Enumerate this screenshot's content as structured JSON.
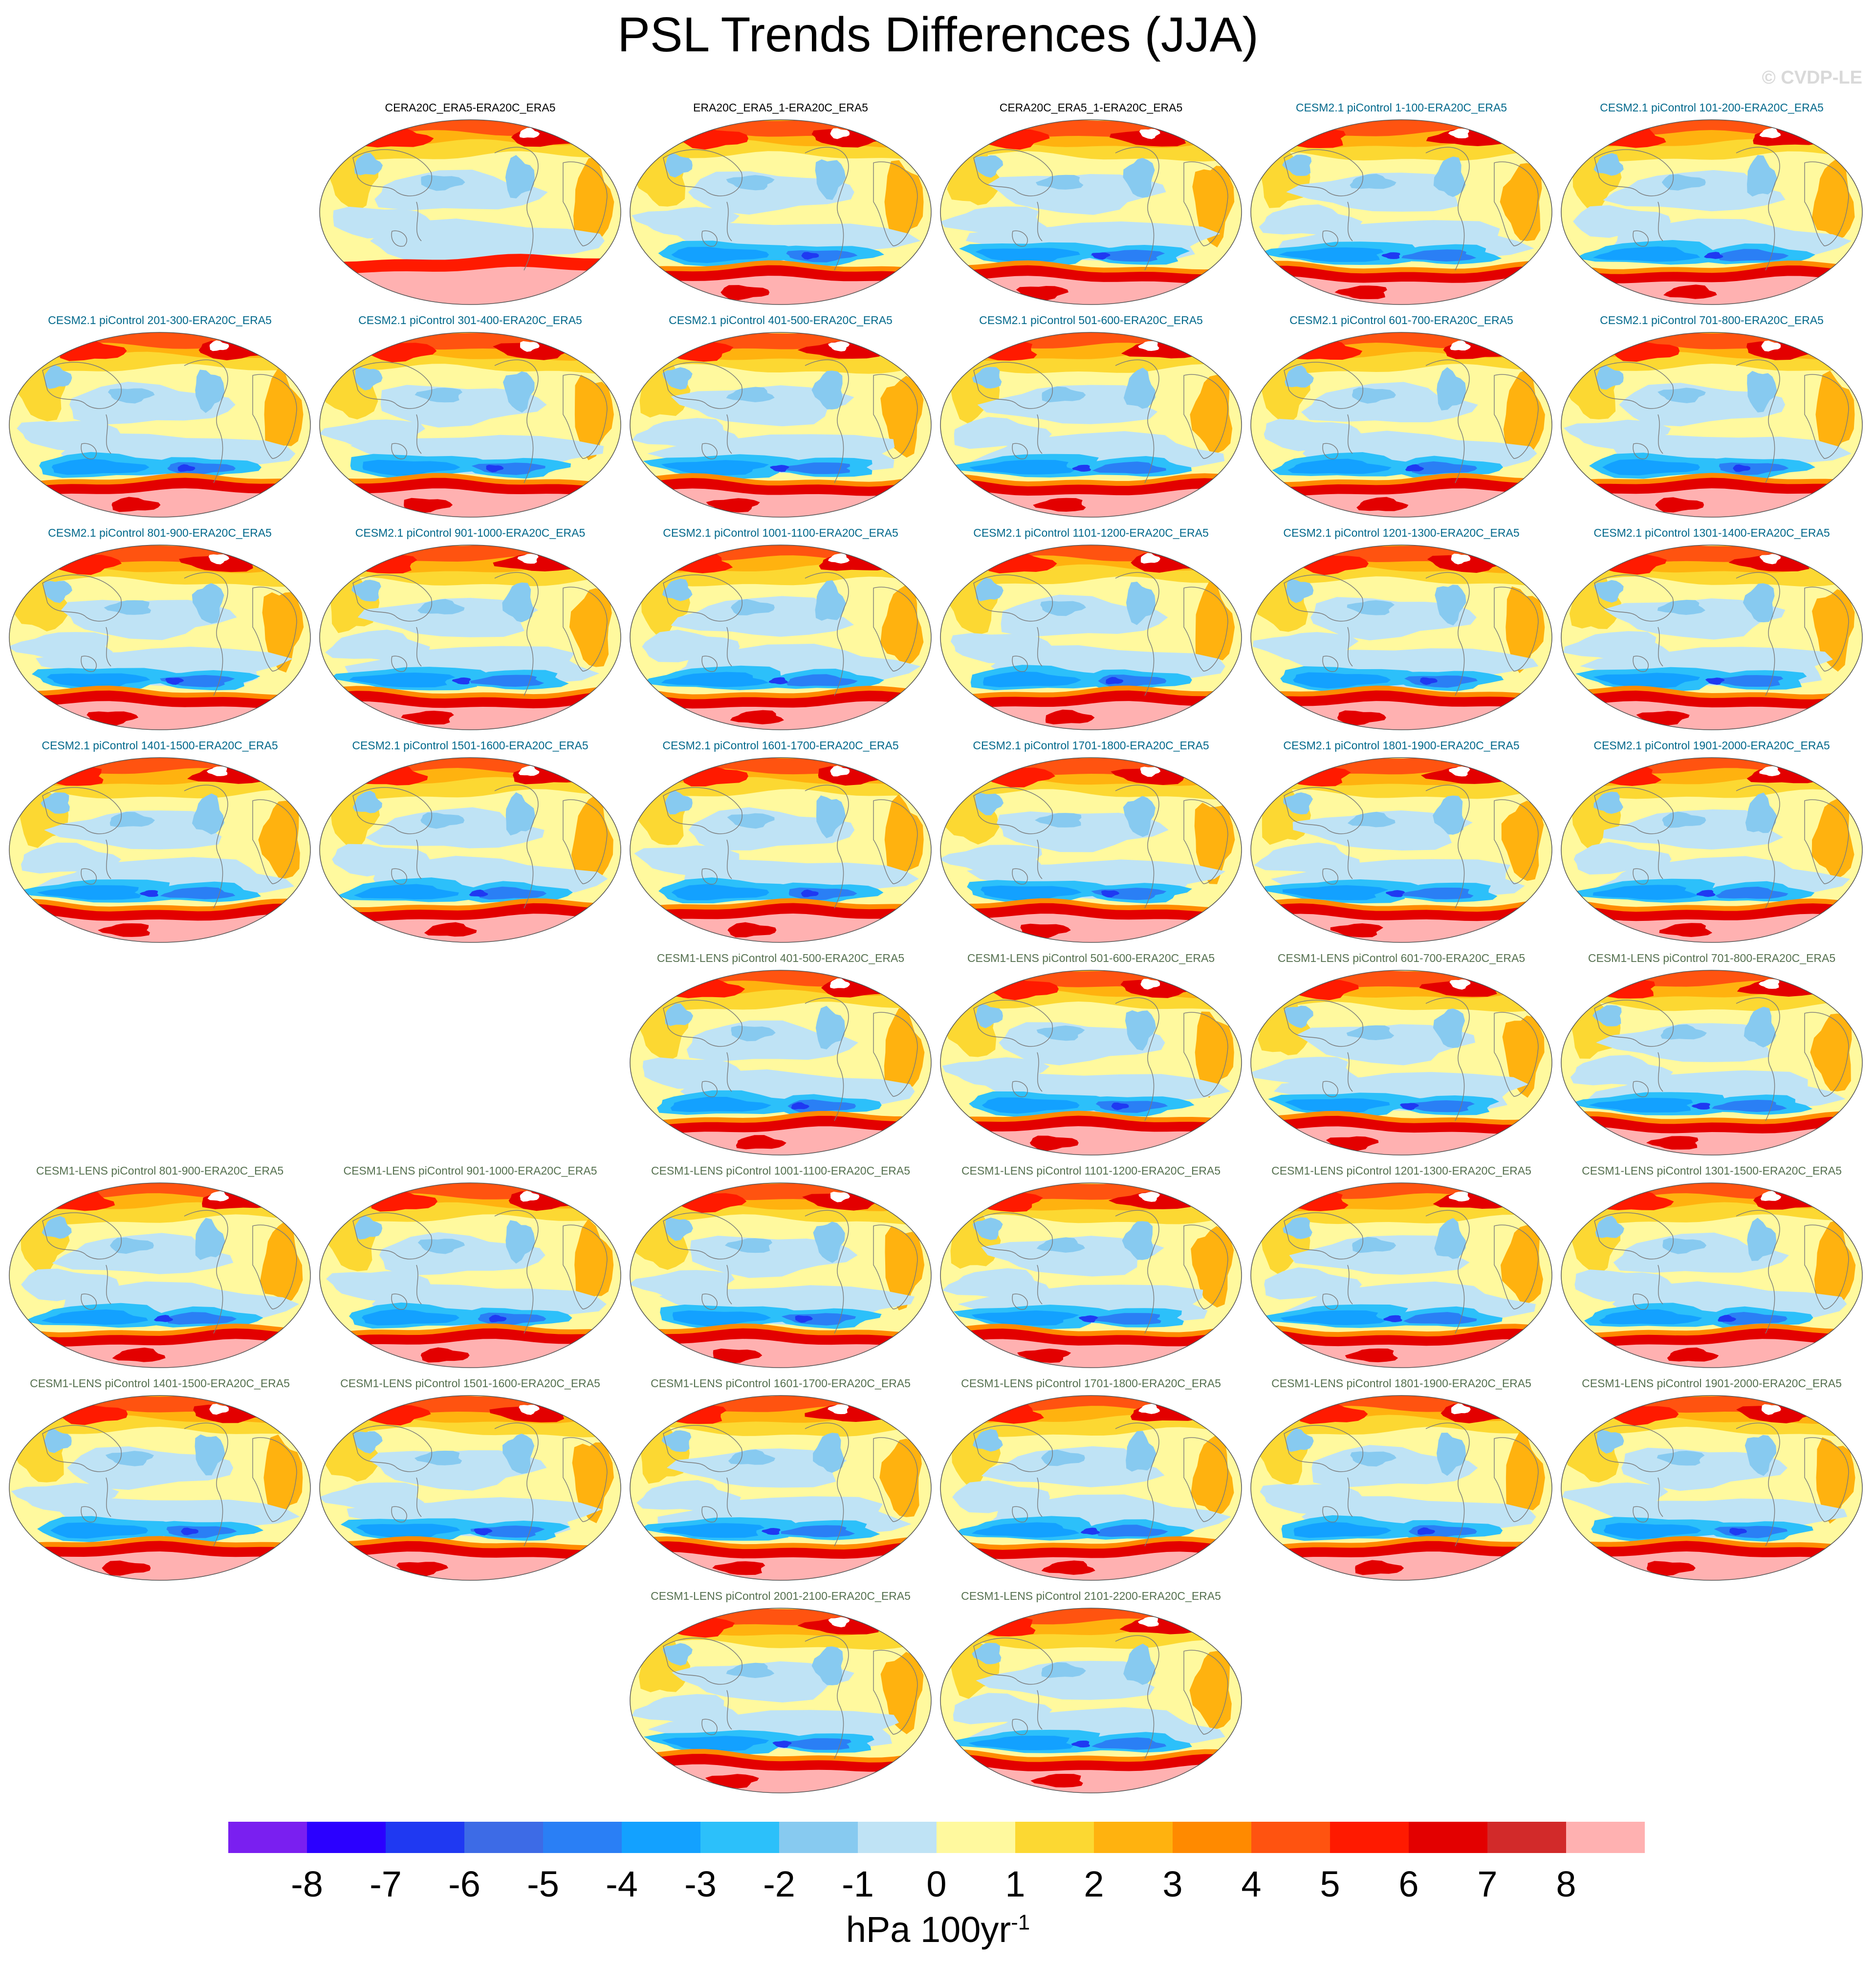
{
  "title": "PSL Trends Differences (JJA)",
  "watermark": "© CVDP-LE",
  "units": {
    "main": "hPa 100yr",
    "exponent": "-1"
  },
  "colors": {
    "obs_label": "#000000",
    "cesm2_label": "#00688b",
    "cesm1_label": "#55704f",
    "coast": "#7a7a7a",
    "map_outline": "#555555"
  },
  "chart_data": {
    "type": "contour-map",
    "variable": "PSL trend difference",
    "season": "JJA",
    "colorbar": {
      "levels": [
        -8,
        -7,
        -6,
        -5,
        -4,
        -3,
        -2,
        -1,
        0,
        1,
        2,
        3,
        4,
        5,
        6,
        7,
        8
      ],
      "colors": [
        "#7a1ff0",
        "#2b00ff",
        "#1f39f2",
        "#3d6be6",
        "#2a7ff5",
        "#13a1ff",
        "#2cc0fa",
        "#87caf0",
        "#bfe3f5",
        "#fff99e",
        "#fcd832",
        "#ffb20f",
        "#ff8a00",
        "#ff5310",
        "#ff1a00",
        "#e30000",
        "#d22a2a",
        "#ffb1b1"
      ]
    },
    "panels": [
      {
        "label": "CERA20C_ERA5-ERA20C_ERA5",
        "group": "obs"
      },
      {
        "label": "ERA20C_ERA5_1-ERA20C_ERA5",
        "group": "obs"
      },
      {
        "label": "CERA20C_ERA5_1-ERA20C_ERA5",
        "group": "obs"
      },
      {
        "label": "CESM2.1 piControl 1-100-ERA20C_ERA5",
        "group": "cesm2"
      },
      {
        "label": "CESM2.1 piControl 101-200-ERA20C_ERA5",
        "group": "cesm2"
      },
      {
        "label": "CESM2.1 piControl 201-300-ERA20C_ERA5",
        "group": "cesm2"
      },
      {
        "label": "CESM2.1 piControl 301-400-ERA20C_ERA5",
        "group": "cesm2"
      },
      {
        "label": "CESM2.1 piControl 401-500-ERA20C_ERA5",
        "group": "cesm2"
      },
      {
        "label": "CESM2.1 piControl 501-600-ERA20C_ERA5",
        "group": "cesm2"
      },
      {
        "label": "CESM2.1 piControl 601-700-ERA20C_ERA5",
        "group": "cesm2"
      },
      {
        "label": "CESM2.1 piControl 701-800-ERA20C_ERA5",
        "group": "cesm2"
      },
      {
        "label": "CESM2.1 piControl 801-900-ERA20C_ERA5",
        "group": "cesm2"
      },
      {
        "label": "CESM2.1 piControl 901-1000-ERA20C_ERA5",
        "group": "cesm2"
      },
      {
        "label": "CESM2.1 piControl 1001-1100-ERA20C_ERA5",
        "group": "cesm2"
      },
      {
        "label": "CESM2.1 piControl 1101-1200-ERA20C_ERA5",
        "group": "cesm2"
      },
      {
        "label": "CESM2.1 piControl 1201-1300-ERA20C_ERA5",
        "group": "cesm2"
      },
      {
        "label": "CESM2.1 piControl 1301-1400-ERA20C_ERA5",
        "group": "cesm2"
      },
      {
        "label": "CESM2.1 piControl 1401-1500-ERA20C_ERA5",
        "group": "cesm2"
      },
      {
        "label": "CESM2.1 piControl 1501-1600-ERA20C_ERA5",
        "group": "cesm2"
      },
      {
        "label": "CESM2.1 piControl 1601-1700-ERA20C_ERA5",
        "group": "cesm2"
      },
      {
        "label": "CESM2.1 piControl 1701-1800-ERA20C_ERA5",
        "group": "cesm2"
      },
      {
        "label": "CESM2.1 piControl 1801-1900-ERA20C_ERA5",
        "group": "cesm2"
      },
      {
        "label": "CESM2.1 piControl 1901-2000-ERA20C_ERA5",
        "group": "cesm2"
      },
      {
        "label": "CESM1-LENS piControl 401-500-ERA20C_ERA5",
        "group": "cesm1"
      },
      {
        "label": "CESM1-LENS piControl 501-600-ERA20C_ERA5",
        "group": "cesm1"
      },
      {
        "label": "CESM1-LENS piControl 601-700-ERA20C_ERA5",
        "group": "cesm1"
      },
      {
        "label": "CESM1-LENS piControl 701-800-ERA20C_ERA5",
        "group": "cesm1"
      },
      {
        "label": "CESM1-LENS piControl 801-900-ERA20C_ERA5",
        "group": "cesm1"
      },
      {
        "label": "CESM1-LENS piControl 901-1000-ERA20C_ERA5",
        "group": "cesm1"
      },
      {
        "label": "CESM1-LENS piControl 1001-1100-ERA20C_ERA5",
        "group": "cesm1"
      },
      {
        "label": "CESM1-LENS piControl 1101-1200-ERA20C_ERA5",
        "group": "cesm1"
      },
      {
        "label": "CESM1-LENS piControl 1201-1300-ERA20C_ERA5",
        "group": "cesm1"
      },
      {
        "label": "CESM1-LENS piControl 1301-1500-ERA20C_ERA5",
        "group": "cesm1"
      },
      {
        "label": "CESM1-LENS piControl 1401-1500-ERA20C_ERA5",
        "group": "cesm1"
      },
      {
        "label": "CESM1-LENS piControl 1501-1600-ERA20C_ERA5",
        "group": "cesm1"
      },
      {
        "label": "CESM1-LENS piControl 1601-1700-ERA20C_ERA5",
        "group": "cesm1"
      },
      {
        "label": "CESM1-LENS piControl 1701-1800-ERA20C_ERA5",
        "group": "cesm1"
      },
      {
        "label": "CESM1-LENS piControl 1801-1900-ERA20C_ERA5",
        "group": "cesm1"
      },
      {
        "label": "CESM1-LENS piControl 1901-2000-ERA20C_ERA5",
        "group": "cesm1"
      },
      {
        "label": "CESM1-LENS piControl 2001-2100-ERA20C_ERA5",
        "group": "cesm1"
      },
      {
        "label": "CESM1-LENS piControl 2101-2200-ERA20C_ERA5",
        "group": "cesm1"
      }
    ]
  }
}
